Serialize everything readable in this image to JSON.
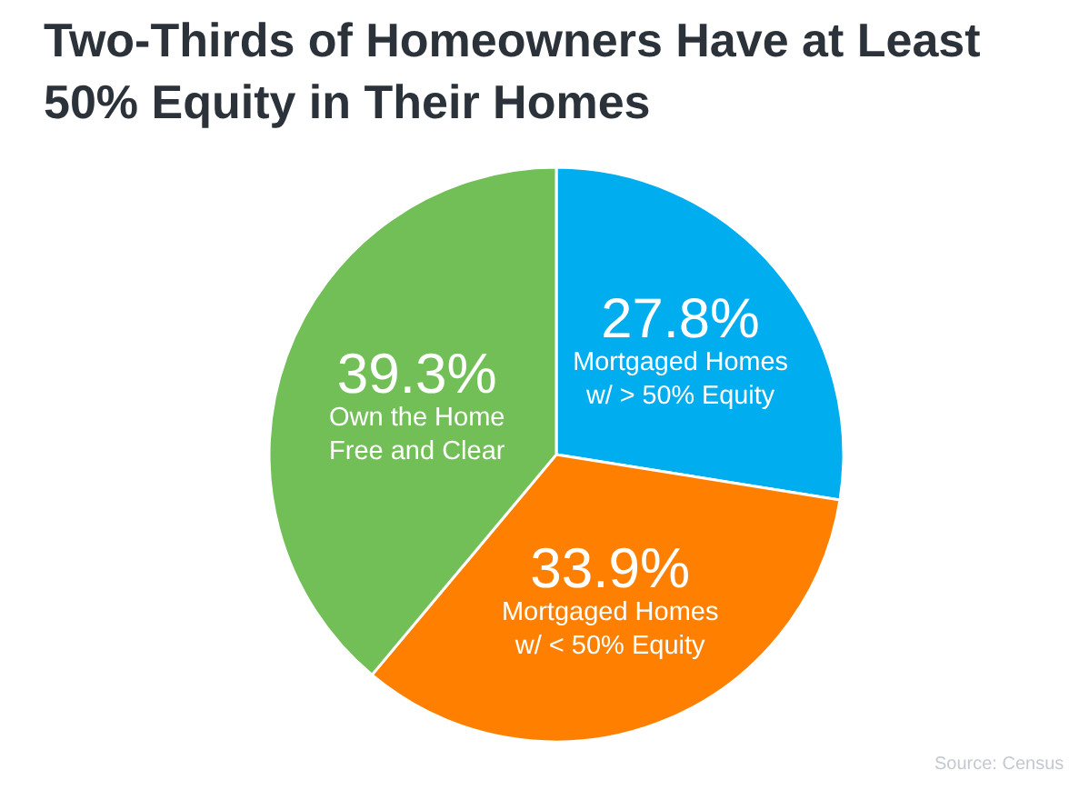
{
  "chart_data": {
    "type": "pie",
    "title": "Two-Thirds of Homeowners Have at Least\n50% Equity in Their Homes",
    "categories": [
      "Mortgaged Homes\nw/ > 50% Equity",
      "Mortgaged Homes\nw/ < 50% Equity",
      "Own the Home\nFree and Clear"
    ],
    "values": [
      27.8,
      33.9,
      39.3
    ],
    "value_labels": [
      "27.8%",
      "33.9%",
      "39.3%"
    ],
    "colors": [
      "#00adef",
      "#ff8000",
      "#72bf58"
    ],
    "annotations": [
      "Source: Census"
    ]
  }
}
